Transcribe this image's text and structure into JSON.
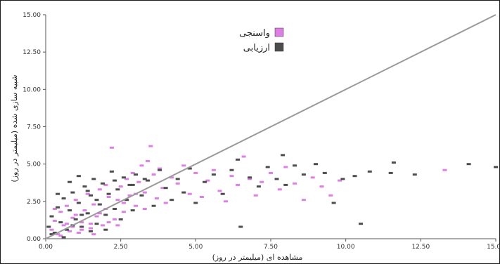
{
  "chart_data": {
    "type": "scatter",
    "title": "",
    "xlabel": "مشاهده ای (میلیمتر در روز)",
    "ylabel": "شبیه سازی شده (میلیمتر در روز)",
    "xlim": [
      0,
      15
    ],
    "ylim": [
      0,
      15
    ],
    "xticks": [
      0,
      2.5,
      5,
      7.5,
      10,
      12.5,
      15
    ],
    "yticks": [
      0,
      2.5,
      5,
      7.5,
      10,
      12.5,
      15
    ],
    "xtick_labels": [
      "0.00",
      "2.50",
      "5.00",
      "7.50",
      "10.00",
      "12.50",
      "15.00"
    ],
    "ytick_labels": [
      "0.00",
      "2.50",
      "5.00",
      "7.50",
      "10.00",
      "12.50",
      "15.00"
    ],
    "grid": false,
    "legend_position": "top-center",
    "reference_line": {
      "from": [
        0,
        0
      ],
      "to": [
        15,
        15
      ],
      "color": "#9a9a9a"
    },
    "series": [
      {
        "name": "واسنجی",
        "color": "#dd80e3",
        "points": [
          [
            0.2,
            0.6
          ],
          [
            0.3,
            1.2
          ],
          [
            0.4,
            0.3
          ],
          [
            0.5,
            1.8
          ],
          [
            0.6,
            0.9
          ],
          [
            0.7,
            2.2
          ],
          [
            0.8,
            0.5
          ],
          [
            0.9,
            1.4
          ],
          [
            1.0,
            2.6
          ],
          [
            1.1,
            0.4
          ],
          [
            1.2,
            1.1
          ],
          [
            1.3,
            1.9
          ],
          [
            1.4,
            3.0
          ],
          [
            1.5,
            0.7
          ],
          [
            1.6,
            2.3
          ],
          [
            1.7,
            1.5
          ],
          [
            1.8,
            3.3
          ],
          [
            1.9,
            0.9
          ],
          [
            2.0,
            2.0
          ],
          [
            2.1,
            2.8
          ],
          [
            2.2,
            6.1
          ],
          [
            2.3,
            1.3
          ],
          [
            2.4,
            2.6
          ],
          [
            2.5,
            3.5
          ],
          [
            2.6,
            1.8
          ],
          [
            2.7,
            4.0
          ],
          [
            2.8,
            2.9
          ],
          [
            2.9,
            4.4
          ],
          [
            3.0,
            2.2
          ],
          [
            3.1,
            3.8
          ],
          [
            3.2,
            4.9
          ],
          [
            3.3,
            3.1
          ],
          [
            3.4,
            5.2
          ],
          [
            3.5,
            6.2
          ],
          [
            3.6,
            4.3
          ],
          [
            3.7,
            2.7
          ],
          [
            3.8,
            4.7
          ],
          [
            3.9,
            3.4
          ],
          [
            4.0,
            2.4
          ],
          [
            4.2,
            4.1
          ],
          [
            4.4,
            3.7
          ],
          [
            4.6,
            4.9
          ],
          [
            4.8,
            3.0
          ],
          [
            5.0,
            4.4
          ],
          [
            5.2,
            2.8
          ],
          [
            5.4,
            3.9
          ],
          [
            5.6,
            4.6
          ],
          [
            5.8,
            3.2
          ],
          [
            6.0,
            2.5
          ],
          [
            6.2,
            4.2
          ],
          [
            6.4,
            3.6
          ],
          [
            6.6,
            5.5
          ],
          [
            6.8,
            4.0
          ],
          [
            7.0,
            2.9
          ],
          [
            7.2,
            3.8
          ],
          [
            7.5,
            4.4
          ],
          [
            7.8,
            3.3
          ],
          [
            8.0,
            4.8
          ],
          [
            8.3,
            3.7
          ],
          [
            8.6,
            2.6
          ],
          [
            8.9,
            4.1
          ],
          [
            9.2,
            3.5
          ],
          [
            9.5,
            2.9
          ],
          [
            9.8,
            3.9
          ],
          [
            13.3,
            4.6
          ],
          [
            0.5,
            0.2
          ],
          [
            0.9,
            0.8
          ],
          [
            1.2,
            0.6
          ],
          [
            1.5,
            1.0
          ],
          [
            1.8,
            1.7
          ],
          [
            2.1,
            1.1
          ],
          [
            2.4,
            0.9
          ],
          [
            1.0,
            1.6
          ],
          [
            1.6,
            0.3
          ],
          [
            2.0,
            3.6
          ],
          [
            2.6,
            2.4
          ],
          [
            3.0,
            3.0
          ],
          [
            3.3,
            2.0
          ],
          [
            0.3,
            2.0
          ],
          [
            0.7,
            1.0
          ]
        ]
      },
      {
        "name": "ارزیابی",
        "color": "#4d4d4d",
        "points": [
          [
            0.1,
            0.8
          ],
          [
            0.2,
            1.5
          ],
          [
            0.3,
            0.4
          ],
          [
            0.4,
            2.1
          ],
          [
            0.5,
            1.1
          ],
          [
            0.6,
            2.7
          ],
          [
            0.7,
            0.6
          ],
          [
            0.8,
            1.9
          ],
          [
            0.9,
            3.1
          ],
          [
            1.0,
            1.3
          ],
          [
            1.1,
            2.4
          ],
          [
            1.2,
            0.8
          ],
          [
            1.3,
            3.5
          ],
          [
            1.4,
            1.7
          ],
          [
            1.5,
            2.9
          ],
          [
            1.6,
            4.0
          ],
          [
            1.7,
            1.0
          ],
          [
            1.8,
            2.3
          ],
          [
            1.9,
            3.7
          ],
          [
            2.0,
            1.6
          ],
          [
            2.1,
            3.0
          ],
          [
            2.2,
            4.5
          ],
          [
            2.3,
            2.0
          ],
          [
            2.4,
            3.3
          ],
          [
            2.5,
            1.3
          ],
          [
            2.6,
            4.1
          ],
          [
            2.7,
            2.6
          ],
          [
            2.8,
            3.6
          ],
          [
            2.9,
            1.9
          ],
          [
            3.0,
            4.3
          ],
          [
            3.2,
            2.9
          ],
          [
            3.4,
            3.9
          ],
          [
            3.6,
            2.2
          ],
          [
            3.8,
            4.6
          ],
          [
            4.0,
            3.4
          ],
          [
            4.2,
            2.6
          ],
          [
            4.4,
            4.0
          ],
          [
            4.6,
            3.1
          ],
          [
            4.8,
            4.7
          ],
          [
            5.0,
            2.4
          ],
          [
            5.3,
            3.8
          ],
          [
            5.6,
            4.3
          ],
          [
            5.9,
            3.0
          ],
          [
            6.2,
            4.6
          ],
          [
            6.5,
            0.8
          ],
          [
            6.8,
            4.1
          ],
          [
            7.1,
            3.5
          ],
          [
            7.4,
            4.8
          ],
          [
            7.7,
            4.0
          ],
          [
            8.0,
            3.6
          ],
          [
            8.3,
            4.9
          ],
          [
            8.6,
            4.3
          ],
          [
            9.0,
            5.0
          ],
          [
            9.3,
            4.4
          ],
          [
            9.6,
            2.4
          ],
          [
            9.9,
            4.0
          ],
          [
            10.3,
            4.2
          ],
          [
            10.5,
            1.0
          ],
          [
            10.8,
            4.5
          ],
          [
            11.5,
            4.4
          ],
          [
            11.6,
            5.1
          ],
          [
            12.3,
            4.3
          ],
          [
            14.1,
            5.0
          ],
          [
            15.0,
            4.8
          ],
          [
            0.2,
            0.3
          ],
          [
            0.6,
            0.1
          ],
          [
            0.9,
            0.9
          ],
          [
            1.2,
            1.6
          ],
          [
            1.5,
            0.5
          ],
          [
            1.7,
            2.6
          ],
          [
            2.0,
            0.6
          ],
          [
            2.3,
            3.9
          ],
          [
            0.4,
            3.0
          ],
          [
            0.8,
            3.8
          ],
          [
            1.1,
            4.2
          ],
          [
            1.4,
            3.2
          ],
          [
            2.9,
            3.6
          ],
          [
            3.3,
            4.0
          ],
          [
            6.4,
            5.3
          ],
          [
            7.9,
            5.6
          ]
        ]
      }
    ]
  }
}
